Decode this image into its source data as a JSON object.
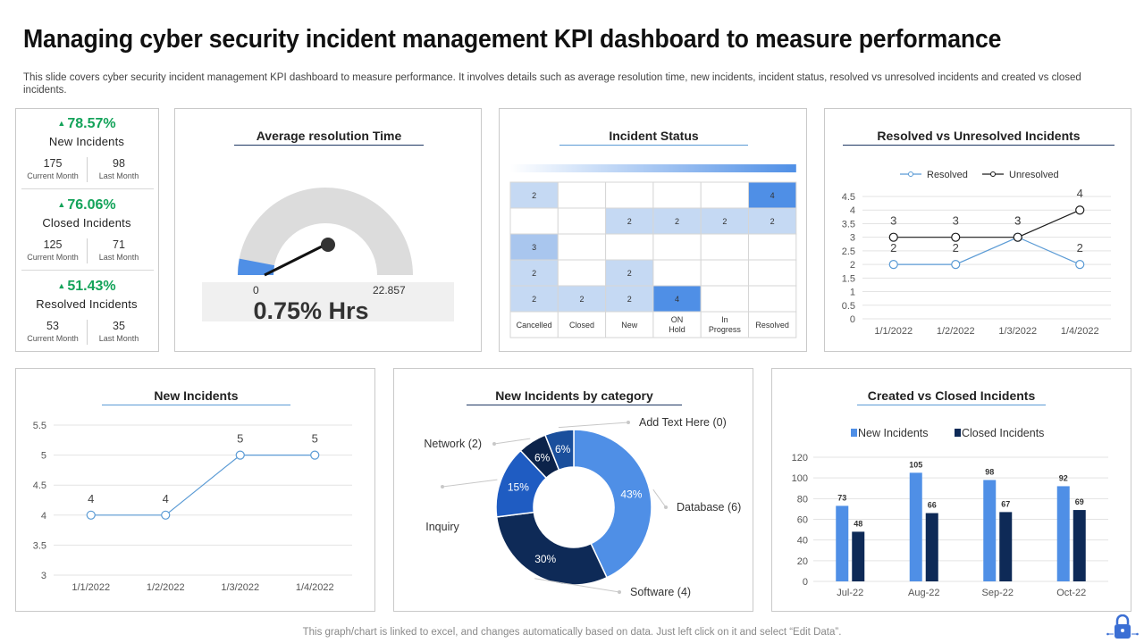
{
  "header": {
    "title": "Managing cyber security incident management KPI dashboard to measure performance",
    "description": "This slide covers cyber security incident management KPI dashboard to measure performance. It involves details such as average resolution time, new incidents, incident status, resolved vs unresolved incidents and created vs closed incidents."
  },
  "kpis": [
    {
      "pct": "78.57%",
      "name": "New Incidents",
      "current": "175",
      "last": "98",
      "current_label": "Current Month",
      "last_label": "Last Month"
    },
    {
      "pct": "76.06%",
      "name": "Closed Incidents",
      "current": "125",
      "last": "71",
      "current_label": "Current Month",
      "last_label": "Last Month"
    },
    {
      "pct": "51.43%",
      "name": "Resolved Incidents",
      "current": "53",
      "last": "35",
      "current_label": "Current Month",
      "last_label": "Last Month"
    }
  ],
  "gauge": {
    "title": "Average resolution Time",
    "min_label": "0",
    "max_label": "22.857",
    "value_label": "0.75% Hrs",
    "value": 0.75,
    "max": 22.857
  },
  "incident_status": {
    "title": "Incident Status",
    "columns": [
      "Cancelled",
      "Closed",
      "New",
      "ON Hold",
      "In Progress",
      "Resolved"
    ],
    "rows": [
      [
        2,
        null,
        null,
        null,
        null,
        4
      ],
      [
        null,
        null,
        2,
        2,
        2,
        2
      ],
      [
        3,
        null,
        null,
        null,
        null,
        null
      ],
      [
        2,
        null,
        2,
        null,
        null,
        null
      ],
      [
        2,
        2,
        2,
        4,
        null,
        null
      ]
    ]
  },
  "resolved_vs_unresolved": {
    "title": "Resolved vs Unresolved Incidents",
    "chart_data": {
      "type": "line",
      "x": [
        "1/1/2022",
        "1/2/2022",
        "1/3/2022",
        "1/4/2022"
      ],
      "series": [
        {
          "name": "Resolved",
          "values": [
            2,
            2,
            3,
            2
          ]
        },
        {
          "name": "Unresolved",
          "values": [
            3,
            3,
            3,
            4
          ]
        }
      ],
      "ylim": [
        0,
        4.5
      ],
      "yticks": [
        "0",
        "0.5",
        "1",
        "1.5",
        "2",
        "2.5",
        "3",
        "3.5",
        "4",
        "4.5"
      ],
      "legend": "top"
    }
  },
  "new_incidents": {
    "title": "New Incidents",
    "chart_data": {
      "type": "line",
      "x": [
        "1/1/2022",
        "1/2/2022",
        "1/3/2022",
        "1/4/2022"
      ],
      "values": [
        4,
        4,
        5,
        5
      ],
      "ylim": [
        3,
        5.5
      ],
      "yticks": [
        "3",
        "3.5",
        "4",
        "4.5",
        "5",
        "5.5"
      ]
    }
  },
  "by_category": {
    "title": "New Incidents by category",
    "chart_data": {
      "type": "pie",
      "slices": [
        {
          "pct": 43,
          "label": "43%",
          "color": "#4f8fe6",
          "callout": "Database (6)"
        },
        {
          "pct": 30,
          "label": "30%",
          "color": "#0e2a57",
          "callout": "Software (4)"
        },
        {
          "pct": 15,
          "label": "15%",
          "color": "#1f5cc2",
          "callout": "Inquiry"
        },
        {
          "pct": 6,
          "label": "6%",
          "color": "#0c234a",
          "callout": "Network (2)"
        },
        {
          "pct": 6,
          "label": "6%",
          "color": "#1a4f9c",
          "callout": "Add Text Here (0)"
        }
      ]
    }
  },
  "created_vs_closed": {
    "title": "Created vs Closed Incidents",
    "chart_data": {
      "type": "bar",
      "categories": [
        "Jul-22",
        "Aug-22",
        "Sep-22",
        "Oct-22"
      ],
      "series": [
        {
          "name": "New Incidents",
          "values": [
            73,
            105,
            98,
            92
          ],
          "color": "#4f8fe6"
        },
        {
          "name": "Closed Incidents",
          "values": [
            48,
            66,
            67,
            69
          ],
          "color": "#0e2a57"
        }
      ],
      "ylim": [
        0,
        120
      ],
      "yticks": [
        "0",
        "20",
        "40",
        "60",
        "80",
        "100",
        "120"
      ],
      "legend": "top"
    }
  },
  "footer": {
    "note": "This graph/chart is linked to excel,  and changes automatically based on data. Just left click on it and select “Edit Data”."
  },
  "colors": {
    "accent_green": "#14a35a",
    "line_blue": "#5b9bd5",
    "dark_navy": "#0e2a57"
  }
}
